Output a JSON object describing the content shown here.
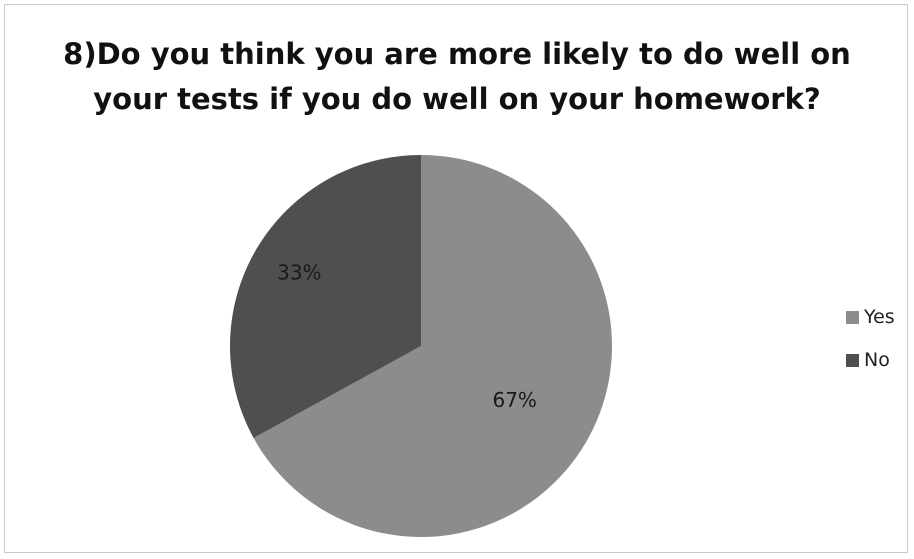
{
  "chart_data": {
    "type": "pie",
    "title": "8)Do you think you are more likely to do well on your tests if you do well on your homework?",
    "title_lines": [
      "8)Do you think you are more likely to do well on",
      "your tests if you do well on your homework?"
    ],
    "categories": [
      "Yes",
      "No"
    ],
    "values": [
      67,
      33
    ],
    "data_labels": [
      "67%",
      "33%"
    ],
    "colors": [
      "#8c8c8c",
      "#4f4f4f"
    ],
    "legend_position": "right"
  }
}
